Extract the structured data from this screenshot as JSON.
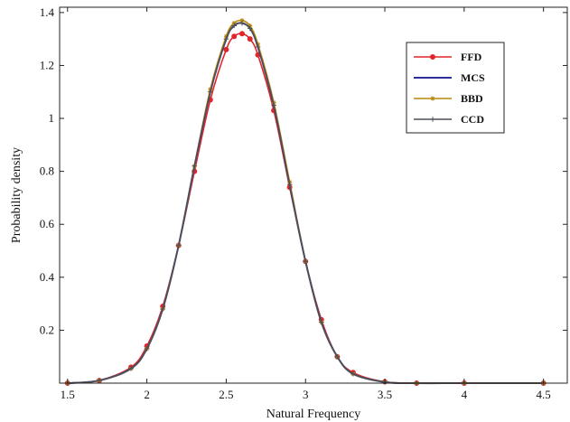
{
  "chart_data": {
    "type": "line",
    "xlabel": "Natural Frequency",
    "ylabel": "Probability density",
    "xlim": [
      1.45,
      4.65
    ],
    "ylim": [
      0,
      1.42
    ],
    "x_ticks": [
      1.5,
      2,
      2.5,
      3,
      3.5,
      4,
      4.5
    ],
    "x_tick_labels": [
      "1.5",
      "2",
      "2.5",
      "3",
      "3.5",
      "4",
      "4.5"
    ],
    "y_ticks": [
      0.2,
      0.4,
      0.6,
      0.8,
      1,
      1.2,
      1.4
    ],
    "y_tick_labels": [
      "0.2",
      "0.4",
      "0.6",
      "0.8",
      "1",
      "1.2",
      "1.4"
    ],
    "grid": false,
    "legend_position": "top-right",
    "series": [
      {
        "name": "FFD",
        "color": "#e0262b",
        "marker": "circle",
        "x": [
          1.5,
          1.7,
          1.9,
          2.0,
          2.1,
          2.2,
          2.3,
          2.4,
          2.5,
          2.55,
          2.6,
          2.65,
          2.7,
          2.8,
          2.9,
          3.0,
          3.1,
          3.2,
          3.3,
          3.5,
          3.7,
          4.0,
          4.5
        ],
        "y": [
          0.0,
          0.01,
          0.06,
          0.14,
          0.29,
          0.52,
          0.8,
          1.07,
          1.26,
          1.31,
          1.32,
          1.3,
          1.24,
          1.03,
          0.74,
          0.46,
          0.24,
          0.1,
          0.04,
          0.005,
          0.0,
          0.0,
          0.0
        ]
      },
      {
        "name": "MCS",
        "color": "#2b2f9e",
        "marker": "none",
        "x": [
          1.5,
          1.7,
          1.9,
          2.0,
          2.1,
          2.2,
          2.3,
          2.4,
          2.5,
          2.55,
          2.6,
          2.65,
          2.7,
          2.8,
          2.9,
          3.0,
          3.1,
          3.2,
          3.3,
          3.5,
          3.7,
          4.0,
          4.5
        ],
        "y": [
          0.0,
          0.01,
          0.055,
          0.13,
          0.28,
          0.52,
          0.82,
          1.1,
          1.3,
          1.35,
          1.36,
          1.34,
          1.27,
          1.05,
          0.75,
          0.46,
          0.23,
          0.1,
          0.035,
          0.004,
          0.0,
          0.0,
          0.0
        ]
      },
      {
        "name": "BBD",
        "color": "#b8860b",
        "marker": "star",
        "x": [
          1.5,
          1.7,
          1.9,
          2.0,
          2.1,
          2.2,
          2.3,
          2.4,
          2.5,
          2.55,
          2.6,
          2.65,
          2.7,
          2.8,
          2.9,
          3.0,
          3.1,
          3.2,
          3.3,
          3.5,
          3.7,
          4.0,
          4.5
        ],
        "y": [
          0.0,
          0.01,
          0.055,
          0.13,
          0.28,
          0.52,
          0.82,
          1.11,
          1.31,
          1.36,
          1.37,
          1.35,
          1.28,
          1.06,
          0.76,
          0.46,
          0.23,
          0.1,
          0.035,
          0.004,
          0.0,
          0.0,
          0.0
        ]
      },
      {
        "name": "CCD",
        "color": "#4a4f5a",
        "marker": "plus",
        "x": [
          1.5,
          1.7,
          1.9,
          2.0,
          2.1,
          2.2,
          2.3,
          2.4,
          2.5,
          2.55,
          2.6,
          2.65,
          2.7,
          2.8,
          2.9,
          3.0,
          3.1,
          3.2,
          3.3,
          3.5,
          3.7,
          4.0,
          4.5
        ],
        "y": [
          0.0,
          0.01,
          0.055,
          0.13,
          0.28,
          0.52,
          0.82,
          1.1,
          1.3,
          1.35,
          1.36,
          1.34,
          1.27,
          1.05,
          0.75,
          0.46,
          0.23,
          0.1,
          0.035,
          0.004,
          0.0,
          0.0,
          0.0
        ]
      }
    ]
  }
}
